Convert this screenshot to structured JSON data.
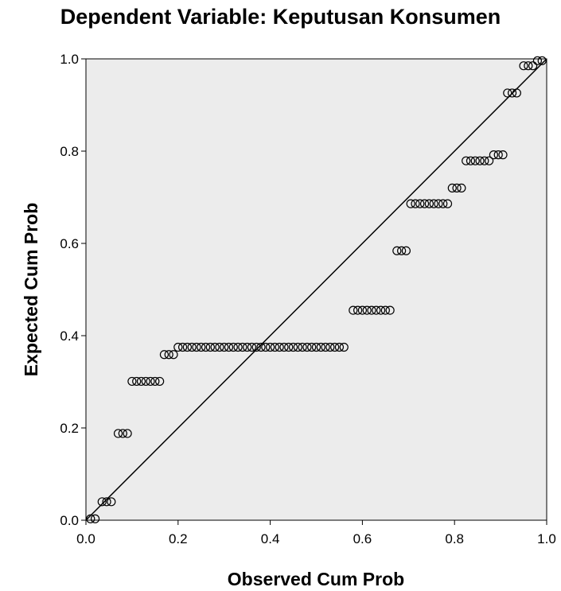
{
  "chart_data": {
    "type": "scatter",
    "title": "Dependent Variable: Keputusan Konsumen",
    "xlabel": "Observed Cum Prob",
    "ylabel": "Expected Cum Prob",
    "xlim": [
      0,
      1
    ],
    "ylim": [
      0,
      1
    ],
    "xticks": [
      "0.0",
      "0.2",
      "0.4",
      "0.6",
      "0.8",
      "1.0"
    ],
    "yticks": [
      "0.0",
      "0.2",
      "0.4",
      "0.6",
      "0.8",
      "1.0"
    ],
    "reference_line": {
      "from": [
        0,
        0
      ],
      "to": [
        1,
        1
      ]
    },
    "grid": false,
    "plot_background": "#ececec",
    "marker": "open-circle",
    "points": [
      {
        "x": 0.01,
        "y": 0.003
      },
      {
        "x": 0.02,
        "y": 0.003
      },
      {
        "x": 0.035,
        "y": 0.04
      },
      {
        "x": 0.045,
        "y": 0.04
      },
      {
        "x": 0.055,
        "y": 0.04
      },
      {
        "x": 0.07,
        "y": 0.188
      },
      {
        "x": 0.08,
        "y": 0.188
      },
      {
        "x": 0.09,
        "y": 0.188
      },
      {
        "x": 0.1,
        "y": 0.301
      },
      {
        "x": 0.11,
        "y": 0.301
      },
      {
        "x": 0.12,
        "y": 0.301
      },
      {
        "x": 0.13,
        "y": 0.301
      },
      {
        "x": 0.14,
        "y": 0.301
      },
      {
        "x": 0.15,
        "y": 0.301
      },
      {
        "x": 0.16,
        "y": 0.301
      },
      {
        "x": 0.17,
        "y": 0.359
      },
      {
        "x": 0.18,
        "y": 0.359
      },
      {
        "x": 0.19,
        "y": 0.359
      },
      {
        "x": 0.2,
        "y": 0.375
      },
      {
        "x": 0.21,
        "y": 0.375
      },
      {
        "x": 0.22,
        "y": 0.375
      },
      {
        "x": 0.23,
        "y": 0.375
      },
      {
        "x": 0.24,
        "y": 0.375
      },
      {
        "x": 0.25,
        "y": 0.375
      },
      {
        "x": 0.26,
        "y": 0.375
      },
      {
        "x": 0.27,
        "y": 0.375
      },
      {
        "x": 0.28,
        "y": 0.375
      },
      {
        "x": 0.29,
        "y": 0.375
      },
      {
        "x": 0.3,
        "y": 0.375
      },
      {
        "x": 0.31,
        "y": 0.375
      },
      {
        "x": 0.32,
        "y": 0.375
      },
      {
        "x": 0.33,
        "y": 0.375
      },
      {
        "x": 0.34,
        "y": 0.375
      },
      {
        "x": 0.35,
        "y": 0.375
      },
      {
        "x": 0.36,
        "y": 0.375
      },
      {
        "x": 0.37,
        "y": 0.375
      },
      {
        "x": 0.38,
        "y": 0.375
      },
      {
        "x": 0.39,
        "y": 0.375
      },
      {
        "x": 0.4,
        "y": 0.375
      },
      {
        "x": 0.41,
        "y": 0.375
      },
      {
        "x": 0.42,
        "y": 0.375
      },
      {
        "x": 0.43,
        "y": 0.375
      },
      {
        "x": 0.44,
        "y": 0.375
      },
      {
        "x": 0.45,
        "y": 0.375
      },
      {
        "x": 0.46,
        "y": 0.375
      },
      {
        "x": 0.47,
        "y": 0.375
      },
      {
        "x": 0.48,
        "y": 0.375
      },
      {
        "x": 0.49,
        "y": 0.375
      },
      {
        "x": 0.5,
        "y": 0.375
      },
      {
        "x": 0.51,
        "y": 0.375
      },
      {
        "x": 0.52,
        "y": 0.375
      },
      {
        "x": 0.53,
        "y": 0.375
      },
      {
        "x": 0.54,
        "y": 0.375
      },
      {
        "x": 0.55,
        "y": 0.375
      },
      {
        "x": 0.56,
        "y": 0.375
      },
      {
        "x": 0.58,
        "y": 0.455
      },
      {
        "x": 0.59,
        "y": 0.455
      },
      {
        "x": 0.6,
        "y": 0.455
      },
      {
        "x": 0.61,
        "y": 0.455
      },
      {
        "x": 0.62,
        "y": 0.455
      },
      {
        "x": 0.63,
        "y": 0.455
      },
      {
        "x": 0.64,
        "y": 0.455
      },
      {
        "x": 0.65,
        "y": 0.455
      },
      {
        "x": 0.66,
        "y": 0.455
      },
      {
        "x": 0.675,
        "y": 0.584
      },
      {
        "x": 0.685,
        "y": 0.584
      },
      {
        "x": 0.695,
        "y": 0.584
      },
      {
        "x": 0.705,
        "y": 0.686
      },
      {
        "x": 0.715,
        "y": 0.686
      },
      {
        "x": 0.725,
        "y": 0.686
      },
      {
        "x": 0.735,
        "y": 0.686
      },
      {
        "x": 0.745,
        "y": 0.686
      },
      {
        "x": 0.755,
        "y": 0.686
      },
      {
        "x": 0.765,
        "y": 0.686
      },
      {
        "x": 0.775,
        "y": 0.686
      },
      {
        "x": 0.785,
        "y": 0.686
      },
      {
        "x": 0.795,
        "y": 0.72
      },
      {
        "x": 0.805,
        "y": 0.72
      },
      {
        "x": 0.815,
        "y": 0.72
      },
      {
        "x": 0.825,
        "y": 0.779
      },
      {
        "x": 0.835,
        "y": 0.779
      },
      {
        "x": 0.845,
        "y": 0.779
      },
      {
        "x": 0.855,
        "y": 0.779
      },
      {
        "x": 0.865,
        "y": 0.779
      },
      {
        "x": 0.875,
        "y": 0.779
      },
      {
        "x": 0.885,
        "y": 0.792
      },
      {
        "x": 0.895,
        "y": 0.792
      },
      {
        "x": 0.905,
        "y": 0.792
      },
      {
        "x": 0.915,
        "y": 0.926
      },
      {
        "x": 0.925,
        "y": 0.926
      },
      {
        "x": 0.935,
        "y": 0.926
      },
      {
        "x": 0.95,
        "y": 0.985
      },
      {
        "x": 0.96,
        "y": 0.985
      },
      {
        "x": 0.97,
        "y": 0.985
      },
      {
        "x": 0.98,
        "y": 0.996
      },
      {
        "x": 0.99,
        "y": 0.996
      }
    ]
  }
}
